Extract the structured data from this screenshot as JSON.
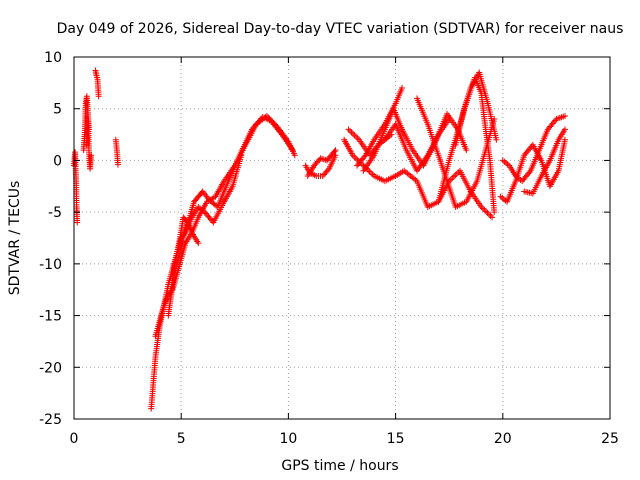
{
  "chart_data": {
    "type": "scatter",
    "title": "Day 049 of 2026, Sidereal Day-to-day VTEC variation (SDTVAR) for receiver naus",
    "xlabel": "GPS time / hours",
    "ylabel": "SDTVAR / TECUs",
    "xlim": [
      0,
      25
    ],
    "ylim": [
      -25,
      10
    ],
    "xticks": [
      0,
      5,
      10,
      15,
      20,
      25
    ],
    "xtick_labels": [
      "0",
      "5",
      "10",
      "15",
      "20",
      "25"
    ],
    "yticks": [
      -25,
      -20,
      -15,
      -10,
      -5,
      0,
      5,
      10
    ],
    "ytick_labels": [
      "-25",
      "-20",
      "-15",
      "-10",
      "-5",
      "0",
      "5",
      "10"
    ],
    "grid": true,
    "marker": "+",
    "color": "#ff0000",
    "tracks": [
      {
        "name": "early-0",
        "x": [
          0.0,
          0.05,
          0.1,
          0.12,
          0.15
        ],
        "y": [
          -0.5,
          0.8,
          -2.0,
          -4.5,
          -6.0
        ]
      },
      {
        "name": "early-1",
        "x": [
          0.45,
          0.5,
          0.55,
          0.6,
          0.7
        ],
        "y": [
          1.0,
          2.5,
          5.5,
          6.2,
          3.0
        ]
      },
      {
        "name": "early-2",
        "x": [
          0.6,
          0.65,
          0.7,
          0.75,
          0.8
        ],
        "y": [
          1.5,
          4.0,
          0.8,
          -0.8,
          0.5
        ]
      },
      {
        "name": "early-3",
        "x": [
          1.0,
          1.05,
          1.1,
          1.15
        ],
        "y": [
          8.7,
          8.2,
          7.8,
          6.2
        ]
      },
      {
        "name": "early-4",
        "x": [
          1.95,
          2.0,
          2.05
        ],
        "y": [
          2.0,
          1.0,
          -0.4
        ]
      },
      {
        "name": "rise-1",
        "x": [
          3.6,
          3.8,
          4.0,
          4.2,
          4.4,
          4.6,
          4.8,
          5.0,
          5.2,
          5.5,
          5.8,
          6.1,
          6.5,
          7.0,
          7.4,
          7.8
        ],
        "y": [
          -24.0,
          -19.0,
          -16.0,
          -14.0,
          -12.0,
          -10.5,
          -9.0,
          -7.5,
          -7.0,
          -5.5,
          -4.5,
          -5.0,
          -6.0,
          -4.0,
          -2.5,
          0.5
        ]
      },
      {
        "name": "rise-2",
        "x": [
          3.8,
          4.0,
          4.2,
          4.4,
          4.6,
          4.8,
          5.0,
          5.2,
          5.5,
          5.8,
          6.2,
          6.6,
          7.0,
          7.5,
          8.0,
          8.5,
          9.0,
          9.5,
          10.0,
          10.3
        ],
        "y": [
          -17.0,
          -15.5,
          -14.0,
          -13.0,
          -12.5,
          -11.0,
          -9.5,
          -8.0,
          -7.0,
          -5.5,
          -4.0,
          -3.5,
          -2.0,
          -0.5,
          1.5,
          3.5,
          4.3,
          3.2,
          1.8,
          0.5
        ]
      },
      {
        "name": "rise-3",
        "x": [
          4.4,
          4.6,
          4.8,
          5.0,
          5.2,
          5.4,
          5.6,
          5.8,
          6.0,
          6.3,
          6.7,
          7.2,
          7.8,
          8.3,
          8.8,
          9.2,
          9.7,
          10.2
        ],
        "y": [
          -15.0,
          -12.0,
          -10.0,
          -8.5,
          -6.5,
          -5.5,
          -4.0,
          -3.5,
          -3.0,
          -3.8,
          -4.5,
          -2.0,
          0.8,
          3.0,
          4.2,
          3.8,
          2.5,
          1.0
        ]
      },
      {
        "name": "rise-4",
        "x": [
          4.5,
          4.7,
          4.9,
          5.1,
          5.3,
          5.5,
          5.8
        ],
        "y": [
          -13.0,
          -10.0,
          -8.0,
          -5.5,
          -6.0,
          -7.0,
          -8.0
        ]
      },
      {
        "name": "mid-1",
        "x": [
          10.8,
          11.0,
          11.3,
          11.6,
          11.9,
          12.2
        ],
        "y": [
          -0.5,
          -1.2,
          -1.5,
          -1.5,
          -0.8,
          0.5
        ]
      },
      {
        "name": "mid-2",
        "x": [
          10.9,
          11.2,
          11.5,
          11.8,
          12.0,
          12.2
        ],
        "y": [
          -1.5,
          -0.5,
          0.2,
          0.0,
          0.5,
          1.0
        ]
      },
      {
        "name": "late-1",
        "x": [
          12.6,
          13.0,
          13.5,
          14.0,
          14.5,
          15.0,
          15.4,
          16.0,
          16.5,
          17.0,
          17.5,
          18.0,
          18.5,
          19.0,
          19.5
        ],
        "y": [
          2.0,
          0.5,
          -0.5,
          -1.5,
          -2.0,
          -1.5,
          -1.0,
          -2.0,
          -4.5,
          -4.0,
          -2.0,
          -1.0,
          -3.0,
          -4.5,
          -5.5
        ]
      },
      {
        "name": "late-2",
        "x": [
          13.2,
          13.6,
          14.0,
          14.5,
          15.0,
          15.3
        ],
        "y": [
          -0.5,
          0.5,
          2.0,
          3.5,
          5.5,
          7.0
        ]
      },
      {
        "name": "late-3",
        "x": [
          12.8,
          13.3,
          13.8,
          14.2,
          14.8
        ],
        "y": [
          3.0,
          2.0,
          0.5,
          1.5,
          2.5
        ]
      },
      {
        "name": "late-4",
        "x": [
          13.5,
          14.0,
          14.5,
          14.9,
          15.3,
          15.8,
          16.3,
          16.8,
          17.4,
          17.9,
          18.3
        ],
        "y": [
          -1.0,
          0.5,
          3.0,
          5.0,
          3.0,
          1.0,
          -0.5,
          1.5,
          4.5,
          3.0,
          1.0
        ]
      },
      {
        "name": "late-5",
        "x": [
          16.0,
          16.5,
          17.0,
          17.4,
          17.8,
          18.3,
          18.8,
          19.2,
          19.6
        ],
        "y": [
          6.0,
          3.5,
          0.5,
          -2.0,
          -4.5,
          -4.0,
          -2.0,
          1.0,
          4.0
        ]
      },
      {
        "name": "late-6",
        "x": [
          17.0,
          17.5,
          18.0,
          18.5,
          18.9,
          19.3,
          19.7
        ],
        "y": [
          -4.0,
          0.0,
          3.5,
          7.0,
          8.5,
          5.5,
          2.0
        ]
      },
      {
        "name": "late-7",
        "x": [
          17.8,
          18.2,
          18.7,
          19.0,
          19.2,
          19.4,
          19.6
        ],
        "y": [
          1.5,
          5.0,
          8.0,
          6.5,
          3.0,
          0.0,
          -5.0
        ]
      },
      {
        "name": "late-8",
        "x": [
          14.5,
          15.0,
          15.5,
          16.0,
          16.5,
          17.0,
          17.5
        ],
        "y": [
          2.0,
          3.5,
          1.0,
          -1.0,
          0.5,
          2.5,
          4.0
        ]
      },
      {
        "name": "late-9",
        "x": [
          19.9,
          20.2,
          20.6,
          21.0,
          21.4,
          21.8,
          22.2,
          22.6,
          22.9
        ],
        "y": [
          -3.5,
          -4.0,
          -2.0,
          0.5,
          1.5,
          0.0,
          -2.5,
          -1.0,
          2.0
        ]
      },
      {
        "name": "late-10",
        "x": [
          20.0,
          20.3,
          20.6,
          20.9,
          21.3,
          21.7,
          22.1,
          22.5,
          22.9
        ],
        "y": [
          0.0,
          -0.5,
          -1.5,
          -2.0,
          -1.0,
          1.0,
          3.0,
          4.0,
          4.3
        ]
      },
      {
        "name": "late-11",
        "x": [
          21.0,
          21.4,
          21.8,
          22.2,
          22.6,
          22.9
        ],
        "y": [
          -3.0,
          -3.2,
          -1.5,
          0.0,
          2.0,
          3.0
        ]
      }
    ]
  }
}
